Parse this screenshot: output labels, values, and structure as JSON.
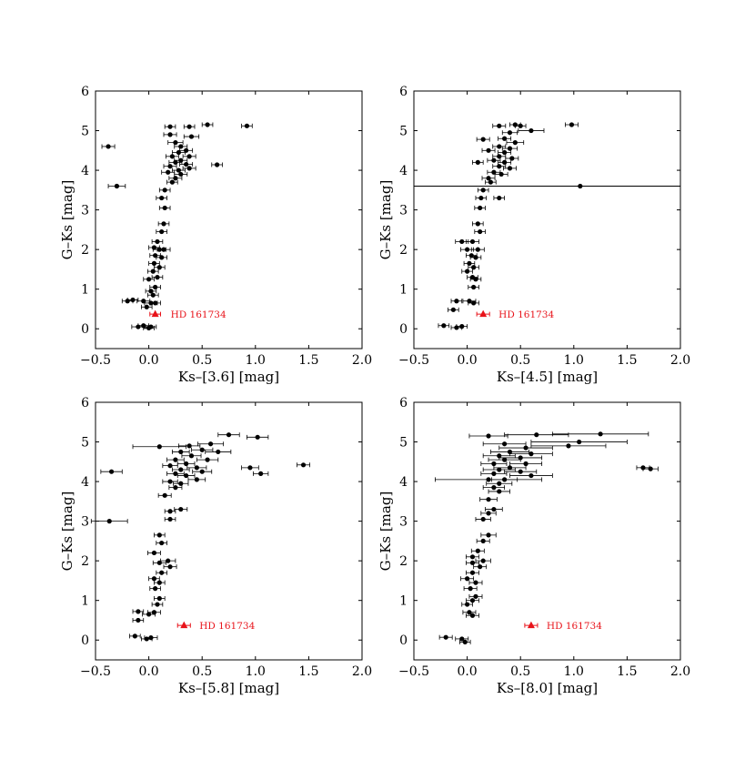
{
  "chart_data": [
    {
      "type": "scatter",
      "xlabel": "Ks–[3.6] [mag]",
      "ylabel": "G–Ks [mag]",
      "xlim": [
        -0.5,
        2.0
      ],
      "ylim": [
        -0.5,
        6
      ],
      "xticks": [
        "−0.5",
        "0.0",
        "0.5",
        "1.0",
        "1.5",
        "2.0"
      ],
      "yticks": [
        "0",
        "1",
        "2",
        "3",
        "4",
        "5",
        "6"
      ],
      "highlight": {
        "name": "HD 161734",
        "x": 0.06,
        "y": 0.37,
        "xerr": 0.05,
        "color": "#e8131a"
      },
      "hline": null,
      "points": [
        [
          -0.38,
          4.6,
          0.06
        ],
        [
          -0.3,
          3.6,
          0.08
        ],
        [
          0.2,
          5.1,
          0.05
        ],
        [
          0.38,
          5.1,
          0.05
        ],
        [
          0.55,
          5.15,
          0.05
        ],
        [
          0.92,
          5.12,
          0.05
        ],
        [
          0.64,
          4.14,
          0.05
        ],
        [
          0.2,
          4.9,
          0.06
        ],
        [
          0.4,
          4.85,
          0.07
        ],
        [
          0.25,
          4.7,
          0.07
        ],
        [
          0.3,
          4.6,
          0.06
        ],
        [
          0.35,
          4.5,
          0.06
        ],
        [
          0.28,
          4.45,
          0.06
        ],
        [
          0.22,
          4.35,
          0.06
        ],
        [
          0.38,
          4.35,
          0.06
        ],
        [
          0.3,
          4.25,
          0.06
        ],
        [
          0.25,
          4.2,
          0.06
        ],
        [
          0.35,
          4.15,
          0.06
        ],
        [
          0.2,
          4.1,
          0.06
        ],
        [
          0.28,
          4.0,
          0.06
        ],
        [
          0.38,
          4.05,
          0.06
        ],
        [
          0.18,
          3.95,
          0.06
        ],
        [
          0.3,
          3.9,
          0.06
        ],
        [
          0.25,
          3.8,
          0.06
        ],
        [
          0.22,
          3.7,
          0.05
        ],
        [
          0.15,
          3.5,
          0.05
        ],
        [
          0.12,
          3.3,
          0.05
        ],
        [
          0.15,
          3.05,
          0.05
        ],
        [
          0.14,
          2.65,
          0.05
        ],
        [
          0.12,
          2.45,
          0.05
        ],
        [
          0.08,
          2.2,
          0.05
        ],
        [
          0.05,
          2.05,
          0.05
        ],
        [
          0.1,
          2.0,
          0.06
        ],
        [
          0.14,
          2.0,
          0.06
        ],
        [
          0.06,
          1.85,
          0.05
        ],
        [
          0.12,
          1.8,
          0.05
        ],
        [
          0.05,
          1.65,
          0.05
        ],
        [
          0.1,
          1.55,
          0.05
        ],
        [
          0.04,
          1.45,
          0.05
        ],
        [
          0.08,
          1.3,
          0.05
        ],
        [
          0.0,
          1.25,
          0.05
        ],
        [
          0.06,
          1.05,
          0.05
        ],
        [
          0.02,
          0.95,
          0.05
        ],
        [
          0.04,
          0.85,
          0.05
        ],
        [
          -0.05,
          0.7,
          0.06
        ],
        [
          -0.2,
          0.7,
          0.05
        ],
        [
          -0.15,
          0.73,
          0.05
        ],
        [
          0.02,
          0.65,
          0.06
        ],
        [
          0.06,
          0.65,
          0.05
        ],
        [
          -0.02,
          0.55,
          0.05
        ],
        [
          -0.1,
          0.05,
          0.06
        ],
        [
          0.0,
          0.02,
          0.05
        ],
        [
          -0.05,
          0.08,
          0.05
        ],
        [
          0.02,
          0.05,
          0.05
        ]
      ]
    },
    {
      "type": "scatter",
      "xlabel": "Ks–[4.5] [mag]",
      "ylabel": "G–Ks [mag]",
      "xlim": [
        -0.5,
        2.0
      ],
      "ylim": [
        -0.5,
        6
      ],
      "xticks": [
        "−0.5",
        "0.0",
        "0.5",
        "1.0",
        "1.5",
        "2.0"
      ],
      "yticks": [
        "0",
        "1",
        "2",
        "3",
        "4",
        "5",
        "6"
      ],
      "highlight": {
        "name": "HD 161734",
        "x": 0.15,
        "y": 0.37,
        "xerr": 0.06,
        "color": "#e8131a"
      },
      "hline": 3.6,
      "points": [
        [
          0.98,
          5.15,
          0.06
        ],
        [
          0.3,
          5.12,
          0.06
        ],
        [
          0.45,
          5.15,
          0.05
        ],
        [
          0.5,
          5.12,
          0.05
        ],
        [
          0.6,
          5.0,
          0.12
        ],
        [
          0.4,
          4.95,
          0.07
        ],
        [
          0.15,
          4.78,
          0.06
        ],
        [
          0.35,
          4.8,
          0.06
        ],
        [
          0.45,
          4.7,
          0.08
        ],
        [
          0.3,
          4.6,
          0.06
        ],
        [
          0.4,
          4.55,
          0.07
        ],
        [
          0.2,
          4.5,
          0.06
        ],
        [
          0.35,
          4.45,
          0.06
        ],
        [
          0.3,
          4.35,
          0.06
        ],
        [
          0.42,
          4.3,
          0.06
        ],
        [
          0.25,
          4.25,
          0.06
        ],
        [
          0.35,
          4.2,
          0.06
        ],
        [
          0.3,
          4.1,
          0.06
        ],
        [
          0.1,
          4.2,
          0.05
        ],
        [
          0.4,
          4.05,
          0.06
        ],
        [
          0.25,
          3.95,
          0.06
        ],
        [
          0.32,
          3.9,
          0.06
        ],
        [
          0.2,
          3.8,
          0.06
        ],
        [
          0.22,
          3.7,
          0.05
        ],
        [
          0.15,
          3.5,
          0.05
        ],
        [
          0.3,
          3.3,
          0.05
        ],
        [
          0.13,
          3.3,
          0.05
        ],
        [
          0.12,
          3.05,
          0.05
        ],
        [
          0.1,
          2.65,
          0.05
        ],
        [
          0.12,
          2.45,
          0.05
        ],
        [
          -0.05,
          2.2,
          0.06
        ],
        [
          0.05,
          2.2,
          0.06
        ],
        [
          0.0,
          2.0,
          0.06
        ],
        [
          0.1,
          2.0,
          0.06
        ],
        [
          0.04,
          1.85,
          0.05
        ],
        [
          0.08,
          1.8,
          0.05
        ],
        [
          0.02,
          1.65,
          0.05
        ],
        [
          0.06,
          1.55,
          0.05
        ],
        [
          0.0,
          1.45,
          0.05
        ],
        [
          0.05,
          1.3,
          0.05
        ],
        [
          0.08,
          1.25,
          0.05
        ],
        [
          0.06,
          1.05,
          0.05
        ],
        [
          -0.1,
          0.7,
          0.05
        ],
        [
          0.02,
          0.7,
          0.06
        ],
        [
          0.06,
          0.65,
          0.05
        ],
        [
          -0.13,
          0.48,
          0.05
        ],
        [
          -0.22,
          0.08,
          0.05
        ],
        [
          -0.1,
          0.03,
          0.05
        ],
        [
          -0.05,
          0.06,
          0.05
        ],
        [
          1.06,
          3.6,
          0.0
        ]
      ]
    },
    {
      "type": "scatter",
      "xlabel": "Ks–[5.8] [mag]",
      "ylabel": "G–Ks [mag]",
      "xlim": [
        -0.5,
        2.0
      ],
      "ylim": [
        -0.5,
        6
      ],
      "xticks": [
        "−0.5",
        "0.0",
        "0.5",
        "1.0",
        "1.5",
        "2.0"
      ],
      "yticks": [
        "0",
        "1",
        "2",
        "3",
        "4",
        "5",
        "6"
      ],
      "highlight": {
        "name": "HD 161734",
        "x": 0.33,
        "y": 0.37,
        "xerr": 0.06,
        "color": "#e8131a"
      },
      "hline": null,
      "points": [
        [
          -0.35,
          4.25,
          0.1
        ],
        [
          -0.37,
          3.0,
          0.17
        ],
        [
          1.45,
          4.42,
          0.06
        ],
        [
          0.75,
          5.18,
          0.1
        ],
        [
          1.02,
          5.12,
          0.1
        ],
        [
          0.1,
          4.88,
          0.25
        ],
        [
          0.58,
          4.95,
          0.12
        ],
        [
          0.38,
          4.9,
          0.1
        ],
        [
          0.5,
          4.8,
          0.1
        ],
        [
          0.3,
          4.75,
          0.08
        ],
        [
          0.65,
          4.75,
          0.12
        ],
        [
          0.4,
          4.65,
          0.09
        ],
        [
          0.25,
          4.55,
          0.08
        ],
        [
          0.55,
          4.55,
          0.1
        ],
        [
          0.35,
          4.45,
          0.08
        ],
        [
          0.2,
          4.4,
          0.07
        ],
        [
          0.45,
          4.35,
          0.09
        ],
        [
          0.95,
          4.35,
          0.08
        ],
        [
          1.05,
          4.2,
          0.07
        ],
        [
          0.3,
          4.3,
          0.08
        ],
        [
          0.5,
          4.25,
          0.09
        ],
        [
          0.25,
          4.2,
          0.08
        ],
        [
          0.35,
          4.15,
          0.08
        ],
        [
          0.45,
          4.05,
          0.08
        ],
        [
          0.2,
          4.0,
          0.07
        ],
        [
          0.3,
          3.95,
          0.07
        ],
        [
          0.25,
          3.85,
          0.06
        ],
        [
          0.15,
          3.65,
          0.06
        ],
        [
          0.3,
          3.3,
          0.06
        ],
        [
          0.2,
          3.25,
          0.05
        ],
        [
          0.2,
          3.05,
          0.05
        ],
        [
          0.1,
          2.65,
          0.05
        ],
        [
          0.12,
          2.45,
          0.05
        ],
        [
          0.05,
          2.2,
          0.06
        ],
        [
          0.18,
          2.0,
          0.07
        ],
        [
          0.1,
          1.95,
          0.06
        ],
        [
          0.2,
          1.85,
          0.06
        ],
        [
          0.12,
          1.7,
          0.05
        ],
        [
          0.05,
          1.55,
          0.05
        ],
        [
          0.1,
          1.45,
          0.05
        ],
        [
          0.06,
          1.3,
          0.05
        ],
        [
          0.1,
          1.05,
          0.05
        ],
        [
          0.08,
          0.9,
          0.05
        ],
        [
          0.05,
          0.7,
          0.06
        ],
        [
          0.0,
          0.65,
          0.06
        ],
        [
          -0.1,
          0.72,
          0.05
        ],
        [
          -0.1,
          0.5,
          0.05
        ],
        [
          -0.13,
          0.1,
          0.05
        ],
        [
          -0.02,
          0.03,
          0.05
        ],
        [
          0.02,
          0.06,
          0.06
        ]
      ]
    },
    {
      "type": "scatter",
      "xlabel": "Ks–[8.0] [mag]",
      "ylabel": "G–Ks [mag]",
      "xlim": [
        -0.5,
        2.0
      ],
      "ylim": [
        -0.5,
        6
      ],
      "xticks": [
        "−0.5",
        "0.0",
        "0.5",
        "1.0",
        "1.5",
        "2.0"
      ],
      "yticks": [
        "0",
        "1",
        "2",
        "3",
        "4",
        "5",
        "6"
      ],
      "highlight": {
        "name": "HD 161734",
        "x": 0.6,
        "y": 0.37,
        "xerr": 0.06,
        "color": "#e8131a"
      },
      "hline": null,
      "points": [
        [
          0.2,
          5.15,
          0.18
        ],
        [
          0.65,
          5.18,
          0.3
        ],
        [
          1.25,
          5.2,
          0.45
        ],
        [
          1.05,
          5.0,
          0.45
        ],
        [
          0.95,
          4.9,
          0.35
        ],
        [
          0.35,
          4.95,
          0.2
        ],
        [
          0.55,
          4.85,
          0.25
        ],
        [
          0.4,
          4.75,
          0.18
        ],
        [
          0.6,
          4.7,
          0.2
        ],
        [
          0.3,
          4.65,
          0.15
        ],
        [
          0.5,
          4.6,
          0.2
        ],
        [
          0.35,
          4.55,
          0.15
        ],
        [
          0.55,
          4.45,
          0.15
        ],
        [
          0.25,
          4.45,
          0.12
        ],
        [
          0.4,
          4.35,
          0.15
        ],
        [
          1.65,
          4.35,
          0.06
        ],
        [
          1.72,
          4.32,
          0.07
        ],
        [
          0.3,
          4.3,
          0.15
        ],
        [
          0.5,
          4.25,
          0.15
        ],
        [
          0.25,
          4.2,
          0.12
        ],
        [
          0.6,
          4.15,
          0.2
        ],
        [
          0.2,
          4.05,
          0.5
        ],
        [
          0.35,
          4.05,
          0.12
        ],
        [
          0.3,
          3.95,
          0.12
        ],
        [
          0.25,
          3.85,
          0.1
        ],
        [
          0.3,
          3.75,
          0.1
        ],
        [
          0.2,
          3.55,
          0.08
        ],
        [
          0.25,
          3.3,
          0.08
        ],
        [
          0.2,
          3.2,
          0.07
        ],
        [
          0.15,
          3.05,
          0.07
        ],
        [
          0.2,
          2.65,
          0.07
        ],
        [
          0.15,
          2.5,
          0.06
        ],
        [
          0.1,
          2.25,
          0.06
        ],
        [
          0.05,
          2.1,
          0.06
        ],
        [
          0.15,
          2.0,
          0.07
        ],
        [
          0.05,
          1.95,
          0.06
        ],
        [
          0.12,
          1.85,
          0.06
        ],
        [
          0.05,
          1.7,
          0.06
        ],
        [
          0.0,
          1.55,
          0.06
        ],
        [
          0.08,
          1.45,
          0.06
        ],
        [
          0.03,
          1.3,
          0.06
        ],
        [
          0.08,
          1.1,
          0.06
        ],
        [
          0.05,
          1.0,
          0.06
        ],
        [
          0.0,
          0.9,
          0.05
        ],
        [
          0.02,
          0.7,
          0.06
        ],
        [
          0.05,
          0.62,
          0.06
        ],
        [
          -0.2,
          0.07,
          0.06
        ],
        [
          -0.05,
          0.03,
          0.06
        ],
        [
          -0.02,
          -0.05,
          0.05
        ]
      ]
    }
  ]
}
